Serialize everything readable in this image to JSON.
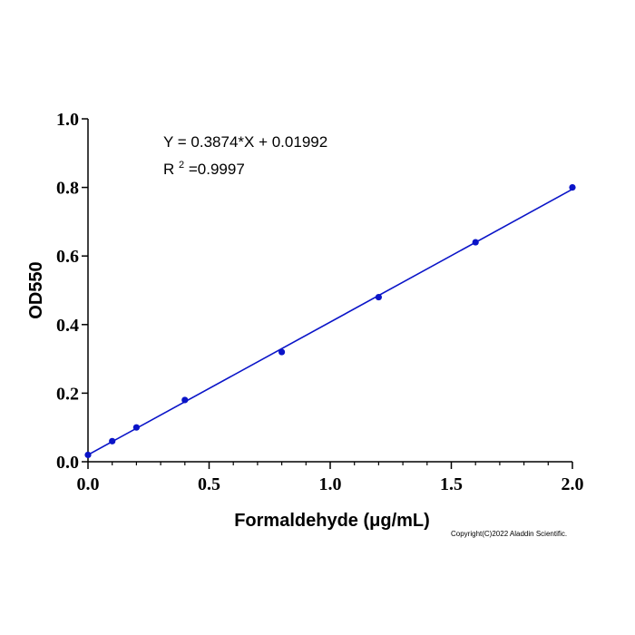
{
  "chart_data": {
    "type": "scatter",
    "title": "",
    "xlabel": "Formaldehyde (μg/mL)",
    "ylabel": "OD550",
    "xlim": [
      0,
      2.0
    ],
    "ylim": [
      0,
      1.0
    ],
    "x_ticks": [
      "0.0",
      "0.5",
      "1.0",
      "1.5",
      "2.0"
    ],
    "y_ticks": [
      "0.0",
      "0.2",
      "0.4",
      "0.6",
      "0.8",
      "1.0"
    ],
    "x_minor_step": 0.1,
    "grid": false,
    "legend": "none",
    "series": [
      {
        "x": [
          0,
          0.1,
          0.2,
          0.4,
          0.8,
          1.2,
          1.6,
          2.0
        ],
        "y": [
          0.02,
          0.06,
          0.1,
          0.18,
          0.32,
          0.48,
          0.64,
          0.8
        ],
        "color": "#0a14c8"
      }
    ],
    "fit": {
      "slope": 0.3874,
      "intercept": 0.01992,
      "color": "#0a14c8",
      "equation_text": "Y = 0.3874*X + 0.01992",
      "r2_prefix": "R",
      "r2_exponent": "2",
      "r2_value": "=0.9997"
    }
  },
  "copyright": "Copyright(C)2022 Aladdin Scientific."
}
